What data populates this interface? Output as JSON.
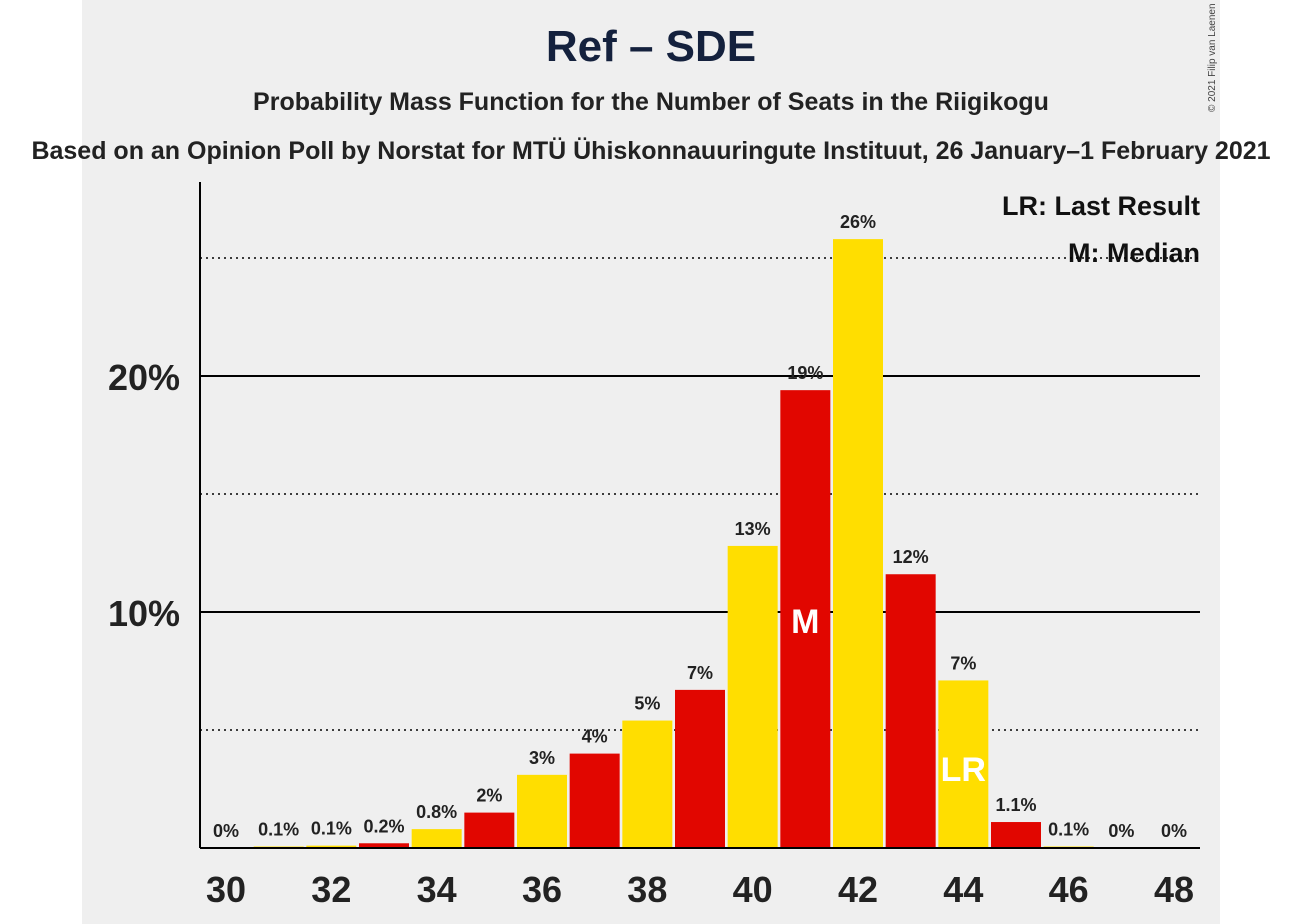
{
  "chart_data": {
    "type": "bar",
    "title": "Ref – SDE",
    "subtitle": "Probability Mass Function for the Number of Seats in the Riigikogu",
    "source": "Based on an Opinion Poll by Norstat for MTÜ Ühiskonnauuringute Instituut, 26 January–1 February 2021",
    "copyright": "© 2021 Filip van Laenen",
    "legend": [
      "LR: Last Result",
      "M: Median"
    ],
    "legend_position": "top-right",
    "x": [
      30,
      31,
      32,
      33,
      34,
      35,
      36,
      37,
      38,
      39,
      40,
      41,
      42,
      43,
      44,
      45,
      46,
      47,
      48
    ],
    "values": [
      0,
      0.05,
      0.1,
      0.2,
      0.8,
      1.5,
      3.1,
      4.0,
      5.4,
      6.7,
      12.8,
      19.4,
      25.8,
      11.6,
      7.1,
      1.1,
      0.05,
      0,
      0
    ],
    "data_labels": [
      "0%",
      "0.1%",
      "0.1%",
      "0.2%",
      "0.8%",
      "2%",
      "3%",
      "4%",
      "5%",
      "7%",
      "13%",
      "19%",
      "26%",
      "12%",
      "7%",
      "1.1%",
      "0.1%",
      "0%",
      "0%"
    ],
    "x_tick_labels": [
      "30",
      "32",
      "34",
      "36",
      "38",
      "40",
      "42",
      "44",
      "46",
      "48"
    ],
    "y_tick_labels": [
      "10%",
      "20%"
    ],
    "y_major_ticks": [
      10,
      20
    ],
    "y_minor_gridlines": [
      5,
      15,
      25
    ],
    "ylim": [
      0,
      28.2
    ],
    "median_seat": 41,
    "median_label": "M",
    "last_result_seat": 44,
    "last_result_label": "LR",
    "colors": {
      "yellow": "#FFDE00",
      "red": "#E10600",
      "axis": "#000000",
      "background": "#efefef"
    },
    "bar_color_sequence": [
      "yellow",
      "yellow",
      "yellow",
      "red",
      "yellow",
      "red",
      "yellow",
      "red",
      "yellow",
      "red",
      "yellow",
      "red",
      "yellow",
      "red",
      "yellow",
      "red",
      "yellow",
      "yellow",
      "yellow"
    ]
  }
}
